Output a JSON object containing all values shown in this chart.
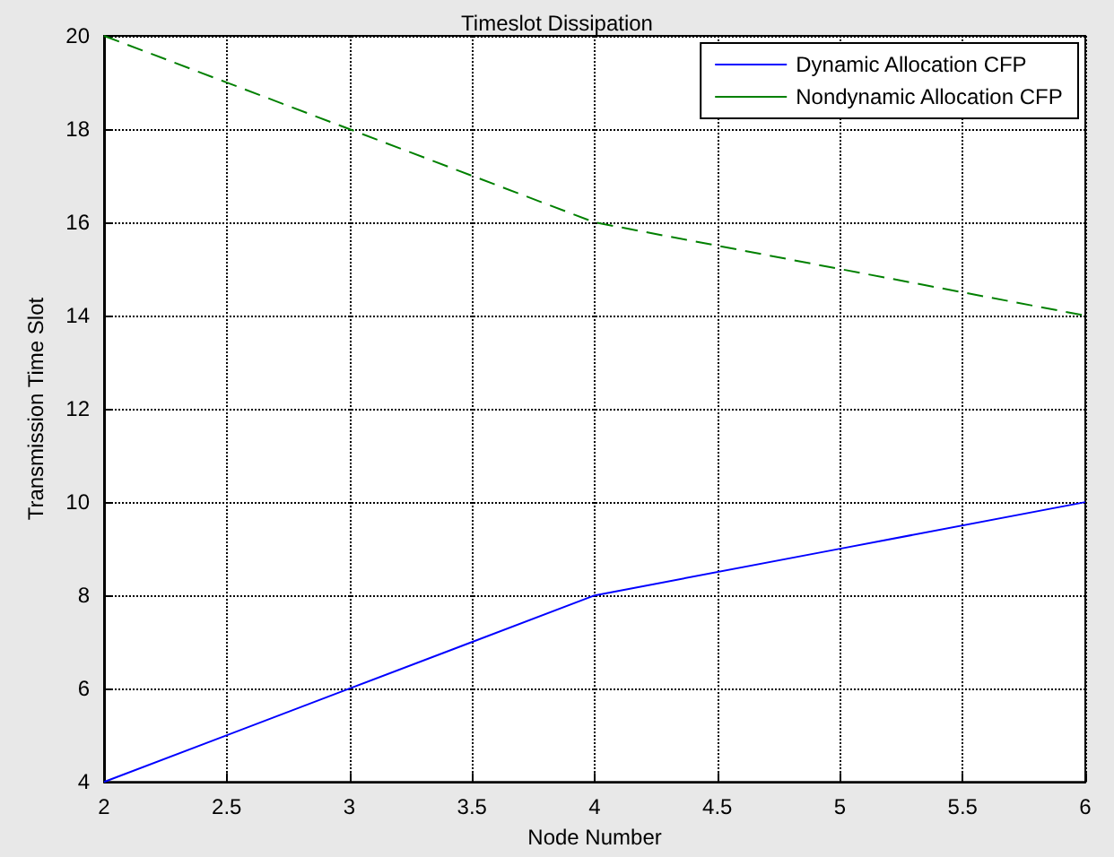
{
  "chart_data": {
    "type": "line",
    "title": "Timeslot Dissipation",
    "xlabel": "Node Number",
    "ylabel": "Transmission Time Slot",
    "x": [
      2,
      3,
      4,
      5,
      6
    ],
    "series": [
      {
        "name": "Dynamic Allocation CFP",
        "color": "#0000ff",
        "values": [
          4,
          6,
          8,
          9,
          10
        ],
        "line_style": "solid"
      },
      {
        "name": "Nondynamic Allocation CFP",
        "color": "#008000",
        "values": [
          20,
          18,
          16,
          15,
          14
        ],
        "line_style": "dashed"
      }
    ],
    "xlim": [
      2,
      6
    ],
    "xticks": [
      2,
      2.5,
      3,
      3.5,
      4,
      4.5,
      5,
      5.5,
      6
    ],
    "ylim": [
      4,
      20
    ],
    "yticks": [
      4,
      6,
      8,
      10,
      12,
      14,
      16,
      18,
      20
    ],
    "grid": true,
    "legend": "top right",
    "marker": "none"
  }
}
